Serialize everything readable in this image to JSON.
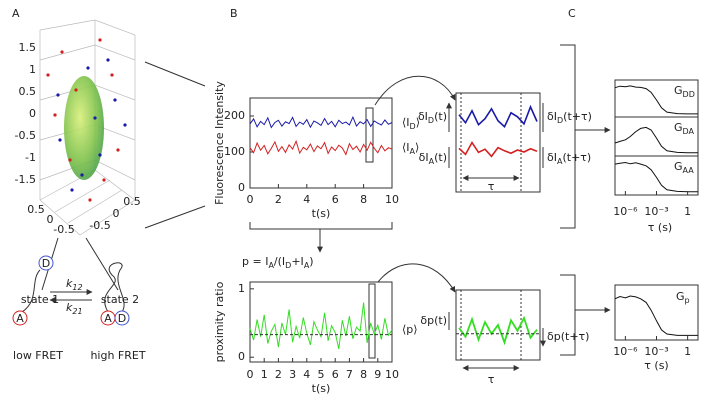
{
  "panel_labels": [
    "A",
    "B",
    "C"
  ],
  "panel_a": {
    "z_ticks": [
      1.5,
      1,
      0.5,
      0,
      -0.5,
      -1,
      -1.5
    ],
    "x_ticks": [
      0.5,
      0,
      -0.5
    ],
    "y_ticks": [
      -0.5,
      0,
      0.5
    ],
    "states": [
      "state 1",
      "state 2"
    ],
    "donor": "D",
    "acceptor": "A",
    "k_forward": [
      "k",
      "12"
    ],
    "k_backward": [
      "k",
      "21"
    ],
    "low": "low FRET",
    "high": "high FRET"
  },
  "intensity": {
    "type": "line",
    "xlabel": "t(s)",
    "ylabel": "Fluorescence Intensity",
    "xlim": [
      0,
      10
    ],
    "ylim": [
      0,
      250
    ],
    "xticks": [
      0,
      2,
      4,
      6,
      8,
      10
    ],
    "yticks": [
      0,
      100,
      200
    ],
    "x": [
      0,
      0.25,
      0.5,
      0.75,
      1,
      1.25,
      1.5,
      1.75,
      2,
      2.25,
      2.5,
      2.75,
      3,
      3.25,
      3.5,
      3.75,
      4,
      4.25,
      4.5,
      4.75,
      5,
      5.25,
      5.5,
      5.75,
      6,
      6.25,
      6.5,
      6.75,
      7,
      7.25,
      7.5,
      7.75,
      8,
      8.25,
      8.5,
      8.75,
      9,
      9.25,
      9.5,
      9.75,
      10
    ],
    "series": [
      {
        "name": [
          "⟨I",
          "D",
          "⟩"
        ],
        "color": "#1a1aa8",
        "values": [
          178,
          192,
          170,
          185,
          176,
          195,
          168,
          182,
          188,
          172,
          184,
          179,
          196,
          171,
          183,
          177,
          190,
          169,
          186,
          181,
          174,
          193,
          176,
          185,
          170,
          188,
          179,
          183,
          175,
          197,
          172,
          184,
          178,
          190,
          171,
          186,
          180,
          175,
          189,
          177,
          182
        ]
      },
      {
        "name": [
          "⟨I",
          "A",
          "⟩"
        ],
        "color": "#d42020",
        "values": [
          112,
          98,
          125,
          105,
          118,
          95,
          110,
          128,
          102,
          115,
          99,
          120,
          108,
          130,
          97,
          113,
          106,
          122,
          101,
          117,
          109,
          126,
          96,
          114,
          104,
          119,
          111,
          93,
          123,
          107,
          116,
          100,
          121,
          105,
          127,
          110,
          98,
          118,
          103,
          112,
          108
        ]
      }
    ]
  },
  "ratio_formula": [
    "p = I",
    "A",
    "/(I",
    "D",
    "+I",
    "A",
    ")"
  ],
  "proximity": {
    "type": "line",
    "xlabel": "t(s)",
    "ylabel": "proximity ratio",
    "xlim": [
      0,
      10
    ],
    "ylim": [
      -0.07,
      1.1
    ],
    "xticks": [
      0,
      1,
      2,
      3,
      4,
      5,
      6,
      7,
      8,
      9,
      10
    ],
    "yticks": [
      0,
      1
    ],
    "mean": 0.33,
    "x": [
      0,
      0.25,
      0.5,
      0.75,
      1,
      1.25,
      1.5,
      1.75,
      2,
      2.25,
      2.5,
      2.75,
      3,
      3.25,
      3.5,
      3.75,
      4,
      4.25,
      4.5,
      4.75,
      5,
      5.25,
      5.5,
      5.75,
      6,
      6.25,
      6.5,
      6.75,
      7,
      7.25,
      7.5,
      7.75,
      8,
      8.25,
      8.5,
      8.75,
      9,
      9.25,
      9.5,
      9.75,
      10
    ],
    "series": [
      {
        "name": [
          "⟨p⟩"
        ],
        "color": "#33dd22",
        "values": [
          0.42,
          0.25,
          0.55,
          0.3,
          0.62,
          0.2,
          0.38,
          0.48,
          0.15,
          0.5,
          0.33,
          0.7,
          0.22,
          0.45,
          0.28,
          0.58,
          0.35,
          0.18,
          0.52,
          0.4,
          0.3,
          0.65,
          0.24,
          0.46,
          0.36,
          0.12,
          0.54,
          0.31,
          0.6,
          0.27,
          0.44,
          0.38,
          0.8,
          0.21,
          0.5,
          0.34,
          0.47,
          0.26,
          0.57,
          0.32,
          0.4
        ]
      }
    ]
  },
  "zoom_intensity": {
    "type": "line",
    "ylim": [
      0,
      250
    ],
    "tau": "τ",
    "labels": [
      [
        "δI",
        "D",
        "(t)"
      ],
      [
        "δI",
        "D",
        "(t+τ)"
      ],
      [
        "δI",
        "A",
        "(t)"
      ],
      [
        "δI",
        "A",
        "(t+τ)"
      ]
    ],
    "series": [
      {
        "color": "#1a1aa8",
        "values": [
          195,
          175,
          205,
          170,
          185,
          210,
          180,
          165,
          200,
          190,
          172,
          215,
          178
        ]
      },
      {
        "color": "#d42020",
        "values": [
          110,
          95,
          125,
          100,
          108,
          90,
          112,
          104,
          98,
          106,
          101,
          109,
          103
        ]
      }
    ]
  },
  "zoom_proximity": {
    "type": "line",
    "ylim": [
      -0.1,
      1.1
    ],
    "mean": 0.35,
    "tau": "τ",
    "labels": [
      [
        "δp(t)"
      ],
      [
        "δp(t+τ)"
      ]
    ],
    "series": [
      {
        "color": "#33dd22",
        "values": [
          0.45,
          0.3,
          0.6,
          0.25,
          0.55,
          0.35,
          0.5,
          0.2,
          0.58,
          0.4,
          0.62,
          0.28,
          0.42
        ]
      }
    ]
  },
  "correlations": {
    "type": "line",
    "log_x": true,
    "xlim": [
      1e-07,
      10
    ],
    "ylim": [
      -0.1,
      1.1
    ],
    "xlabel": "τ (s)",
    "xticks": [
      {
        "value": 1e-06,
        "label": "10⁻⁶"
      },
      {
        "value": 0.001,
        "label": "10⁻³"
      },
      1
    ],
    "x": [
      1e-07,
      3e-07,
      1e-06,
      3e-06,
      1e-05,
      3e-05,
      0.0001,
      0.0003,
      0.001,
      0.003,
      0.01,
      0.1,
      1,
      10
    ],
    "series": [
      {
        "name": [
          "G",
          "DD"
        ],
        "color": "#111111",
        "values": [
          0.85,
          0.9,
          0.88,
          0.91,
          0.87,
          0.86,
          0.82,
          0.7,
          0.45,
          0.2,
          0.06,
          0.01,
          0,
          0
        ]
      },
      {
        "name": [
          "G",
          "DA"
        ],
        "color": "#111111",
        "values": [
          0.3,
          0.35,
          0.4,
          0.5,
          0.65,
          0.75,
          0.78,
          0.7,
          0.45,
          0.2,
          0.06,
          0.01,
          0,
          0
        ]
      },
      {
        "name": [
          "G",
          "AA"
        ],
        "color": "#111111",
        "values": [
          0.85,
          0.88,
          0.9,
          0.86,
          0.89,
          0.85,
          0.8,
          0.68,
          0.44,
          0.2,
          0.06,
          0.01,
          0,
          0
        ]
      }
    ]
  },
  "correlation_p": {
    "type": "line",
    "log_x": true,
    "xlim": [
      1e-07,
      10
    ],
    "ylim": [
      -0.1,
      1.1
    ],
    "xlabel": "τ (s)",
    "xticks": [
      {
        "value": 1e-06,
        "label": "10⁻⁶"
      },
      {
        "value": 0.001,
        "label": "10⁻³"
      },
      1
    ],
    "x": [
      1e-07,
      3e-07,
      1e-06,
      3e-06,
      1e-05,
      3e-05,
      0.0001,
      0.0003,
      0.001,
      0.003,
      0.01,
      0.1,
      1,
      10
    ],
    "series": [
      {
        "name": [
          "G",
          "p"
        ],
        "color": "#111111",
        "values": [
          0.8,
          0.85,
          0.82,
          0.86,
          0.84,
          0.8,
          0.72,
          0.55,
          0.32,
          0.12,
          0.03,
          0,
          0,
          0
        ]
      }
    ]
  }
}
